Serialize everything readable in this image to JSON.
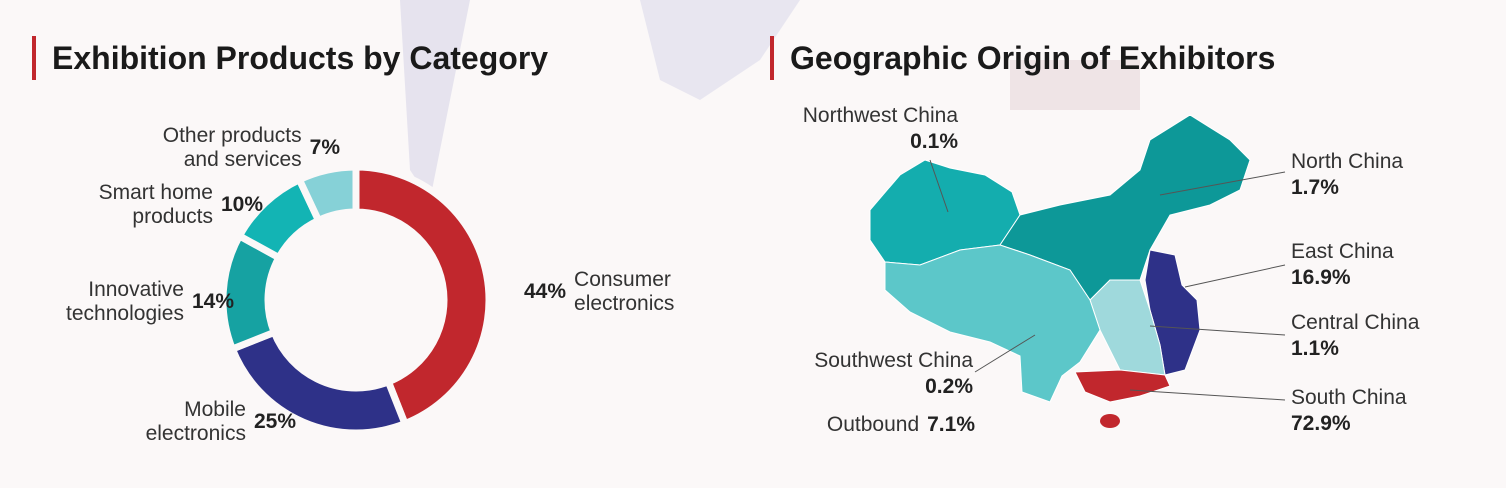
{
  "chart_data": [
    {
      "type": "pie",
      "title": "Exhibition Products by Category",
      "categories": [
        "Consumer electronics",
        "Mobile electronics",
        "Innovative technologies",
        "Smart home products",
        "Other products and services"
      ],
      "values": [
        44,
        25,
        14,
        10,
        7
      ],
      "value_labels": [
        "44%",
        "25%",
        "14%",
        "10%",
        "7%"
      ],
      "colors": [
        "#c1272d",
        "#2e3188",
        "#16a2a2",
        "#13b4b4",
        "#86d1d7"
      ]
    },
    {
      "type": "map",
      "title": "Geographic Origin of Exhibitors",
      "categories": [
        "Northwest China",
        "North China",
        "East China",
        "Central China",
        "South China",
        "Southwest China",
        "Outbound"
      ],
      "values": [
        0.1,
        1.7,
        16.9,
        1.1,
        72.9,
        0.2,
        7.1
      ],
      "value_labels": [
        "0.1%",
        "1.7%",
        "16.9%",
        "1.1%",
        "72.9%",
        "0.2%",
        "7.1%"
      ],
      "colors": [
        "#14adae",
        "#0d9898",
        "#2e3188",
        "#9fd9dc",
        "#c1272d",
        "#5cc7c9",
        null
      ]
    }
  ]
}
